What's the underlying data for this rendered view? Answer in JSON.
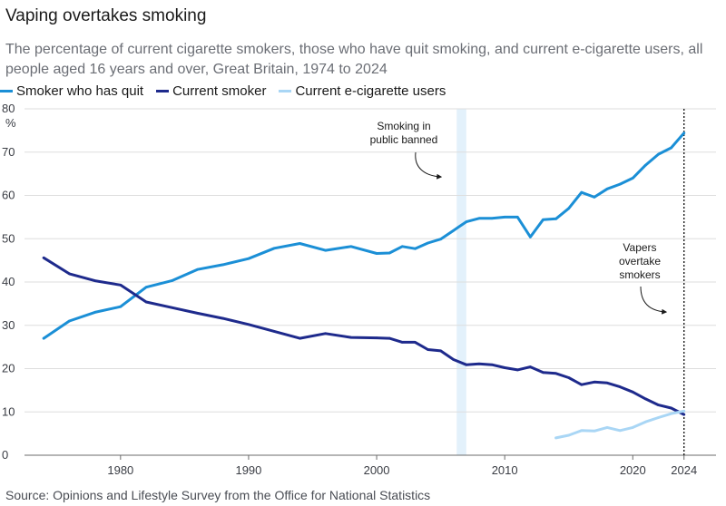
{
  "chart_data": {
    "type": "line",
    "title": "Vaping overtakes smoking",
    "subtitle": "The percentage of current cigarette smokers, those who have quit smoking, and current e-cigarette users, all people aged 16 years and over, Great Britain, 1974 to 2024",
    "ylabel": "%",
    "xlim": [
      1972.5,
      2026.5
    ],
    "ylim": [
      0,
      80
    ],
    "yticks": [
      0,
      10,
      20,
      30,
      40,
      50,
      60,
      70,
      80
    ],
    "xticks": [
      1980,
      1990,
      2000,
      2010,
      2020,
      2024
    ],
    "series": [
      {
        "name": "Smoker who has quit",
        "color": "#1b8fd6",
        "x": [
          1974,
          1976,
          1978,
          1980,
          1982,
          1984,
          1986,
          1988,
          1990,
          1992,
          1994,
          1996,
          1998,
          2000,
          2001,
          2002,
          2003,
          2004,
          2005,
          2006,
          2007,
          2008,
          2009,
          2010,
          2011,
          2012,
          2013,
          2014,
          2015,
          2016,
          2017,
          2018,
          2019,
          2020,
          2021,
          2022,
          2023,
          2024
        ],
        "values": [
          27,
          31,
          33,
          34.3,
          38.8,
          40.3,
          42.9,
          44,
          45.4,
          47.8,
          48.9,
          47.3,
          48.2,
          46.6,
          46.7,
          48.2,
          47.7,
          49,
          49.9,
          51.9,
          53.9,
          54.7,
          54.7,
          55,
          55,
          50.4,
          54.4,
          54.6,
          57,
          60.7,
          59.6,
          61.5,
          62.6,
          64,
          67,
          69.5,
          71,
          74.4
        ]
      },
      {
        "name": "Current smoker",
        "color": "#1e2a8c",
        "x": [
          1974,
          1976,
          1978,
          1980,
          1982,
          1984,
          1986,
          1988,
          1990,
          1992,
          1994,
          1996,
          1998,
          2000,
          2001,
          2002,
          2003,
          2004,
          2005,
          2006,
          2007,
          2008,
          2009,
          2010,
          2011,
          2012,
          2013,
          2014,
          2015,
          2016,
          2017,
          2018,
          2019,
          2020,
          2021,
          2022,
          2023,
          2024
        ],
        "values": [
          45.6,
          41.9,
          40.3,
          39.3,
          35.4,
          34.1,
          32.8,
          31.6,
          30.2,
          28.6,
          27,
          28.1,
          27.2,
          27.1,
          27,
          26.1,
          26.1,
          24.4,
          24.1,
          22.1,
          20.9,
          21.1,
          20.9,
          20.2,
          19.7,
          20.4,
          19.1,
          18.9,
          17.9,
          16.3,
          16.9,
          16.7,
          15.8,
          14.6,
          13,
          11.6,
          10.9,
          9.4
        ]
      },
      {
        "name": "Current e-cigarette users",
        "color": "#a9d6f5",
        "x": [
          2014,
          2015,
          2016,
          2017,
          2018,
          2019,
          2020,
          2021,
          2022,
          2023,
          2024
        ],
        "values": [
          4,
          4.6,
          5.7,
          5.6,
          6.4,
          5.7,
          6.4,
          7.7,
          8.7,
          9.6,
          10.2
        ]
      }
    ],
    "annotations": [
      {
        "id": "ban",
        "lines": [
          "Smoking in",
          "public banned"
        ],
        "x": 2007
      },
      {
        "id": "vapers",
        "lines": [
          "Vapers",
          "overtake",
          "smokers"
        ],
        "x": 2024
      }
    ]
  },
  "source": "Source: Opinions and Lifestyle Survey from the Office for National Statistics"
}
